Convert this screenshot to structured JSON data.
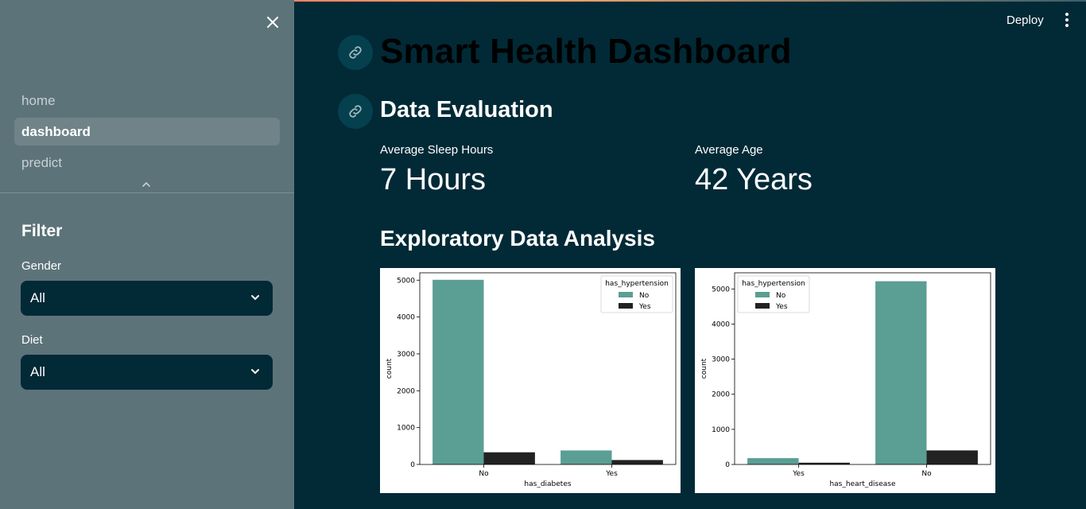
{
  "sidebar": {
    "nav": [
      {
        "label": "home",
        "active": false
      },
      {
        "label": "dashboard",
        "active": true
      },
      {
        "label": "predict",
        "active": false
      }
    ],
    "filter_title": "Filter",
    "gender": {
      "label": "Gender",
      "value": "All"
    },
    "diet": {
      "label": "Diet",
      "value": "All"
    }
  },
  "header": {
    "deploy_label": "Deploy"
  },
  "main": {
    "title": "Smart Health Dashboard",
    "section_title": "Data Evaluation",
    "metrics": [
      {
        "label": "Average Sleep Hours",
        "value": "7 Hours"
      },
      {
        "label": "Average Age",
        "value": "42 Years"
      }
    ],
    "eda_title": "Exploratory Data Analysis"
  },
  "colors": {
    "no": "#5b9e94",
    "yes": "#222222"
  },
  "chart_data": [
    {
      "type": "bar",
      "categories": [
        "No",
        "Yes"
      ],
      "xlabel": "has_diabetes",
      "ylabel": "count",
      "ylim": [
        0,
        5200
      ],
      "yticks": [
        0,
        1000,
        2000,
        3000,
        4000,
        5000
      ],
      "legend": {
        "title": "has_hypertension",
        "placement": "top-right"
      },
      "series": [
        {
          "name": "No",
          "values": [
            5010,
            380
          ]
        },
        {
          "name": "Yes",
          "values": [
            330,
            120
          ]
        }
      ]
    },
    {
      "type": "bar",
      "categories": [
        "Yes",
        "No"
      ],
      "xlabel": "has_heart_disease",
      "ylabel": "count",
      "ylim": [
        0,
        5460
      ],
      "yticks": [
        0,
        1000,
        2000,
        3000,
        4000,
        5000
      ],
      "legend": {
        "title": "has_hypertension",
        "placement": "top-left"
      },
      "series": [
        {
          "name": "No",
          "values": [
            180,
            5220
          ]
        },
        {
          "name": "Yes",
          "values": [
            50,
            400
          ]
        }
      ]
    }
  ]
}
